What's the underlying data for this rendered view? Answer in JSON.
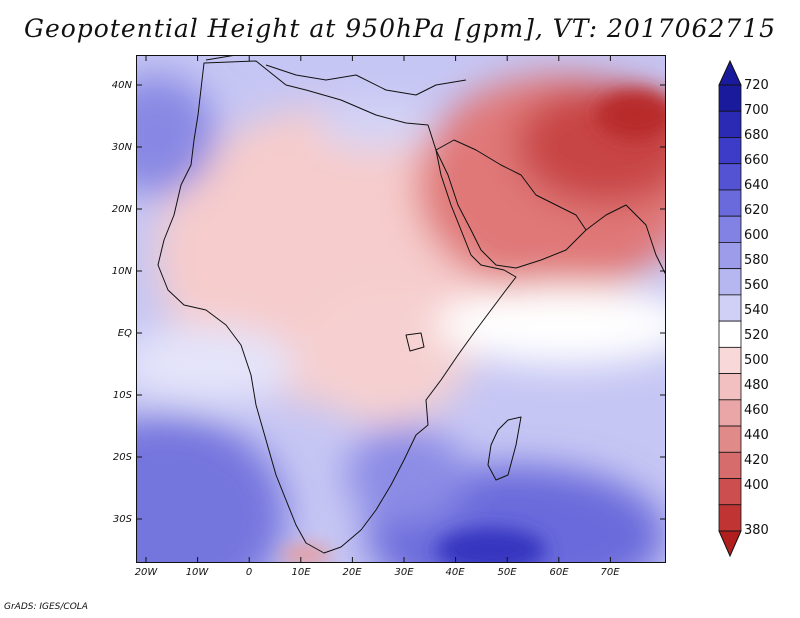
{
  "title": "Geopotential Height at 950hPa [gpm], VT: 2017062715",
  "footer": "GrADS: IGES/COLA",
  "map": {
    "region": "Africa and Arabian Peninsula",
    "lon_range": [
      -23,
      80
    ],
    "lat_range": [
      -37,
      45
    ],
    "lat_labels": [
      "40N",
      "30N",
      "20N",
      "10N",
      "EQ",
      "10S",
      "20S",
      "30S"
    ],
    "lon_labels": [
      "20W",
      "10W",
      "0",
      "10E",
      "20E",
      "30E",
      "40E",
      "50E",
      "60E",
      "70E"
    ]
  },
  "colorbar": {
    "labels": [
      "720",
      "700",
      "680",
      "660",
      "640",
      "620",
      "600",
      "580",
      "560",
      "540",
      "520",
      "500",
      "480",
      "460",
      "440",
      "420",
      "400",
      "380"
    ],
    "colors": [
      "#1a1a9c",
      "#2a2ab4",
      "#3c3cc8",
      "#5353d4",
      "#6a6adc",
      "#8282e4",
      "#9c9cea",
      "#b6b6f0",
      "#d0d0f6",
      "#ffffff",
      "#f8d8d8",
      "#f2c0c0",
      "#eaa6a6",
      "#e08a8a",
      "#d66c6c",
      "#cc4e4e",
      "#c03434",
      "#b01e1e"
    ],
    "top_arrow_color": "#1a1a9c",
    "bottom_arrow_color": "#b01e1e"
  }
}
